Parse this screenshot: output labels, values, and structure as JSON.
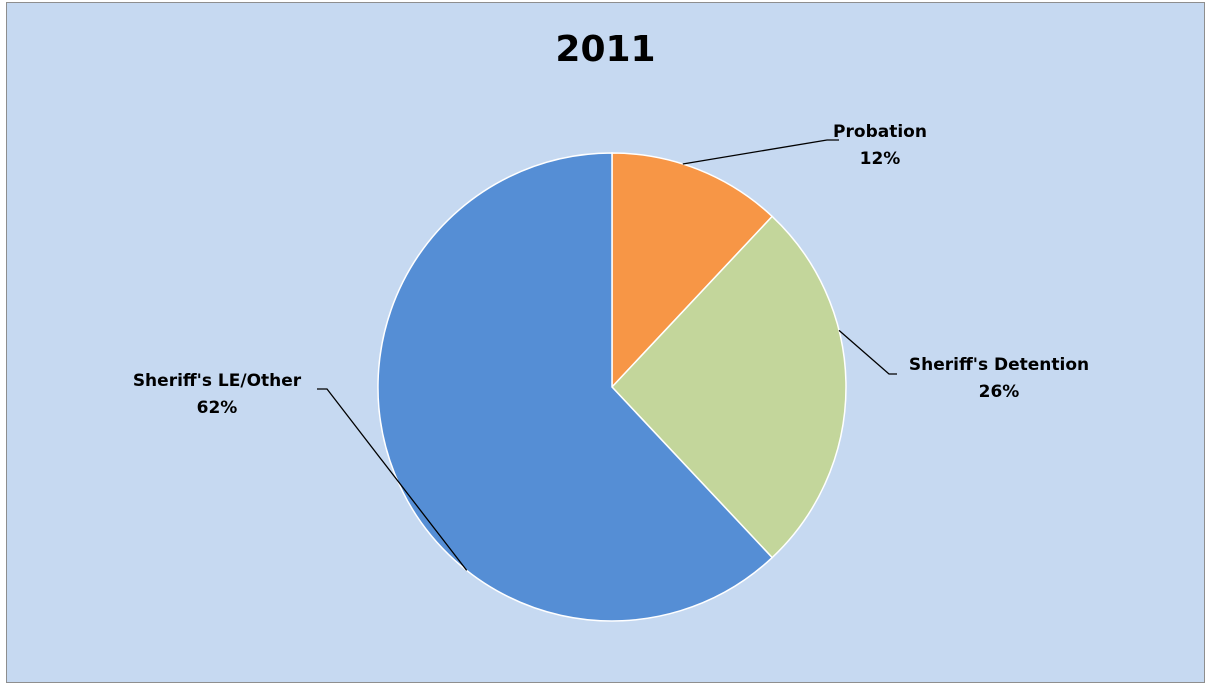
{
  "chart_data": {
    "type": "pie",
    "title": "2011",
    "categories": [
      "Probation",
      "Sheriff's Detention",
      "Sheriff's LE/Other"
    ],
    "values": [
      12,
      26,
      62
    ],
    "value_labels": [
      "12%",
      "26%",
      "62%"
    ],
    "colors": [
      "#f79646",
      "#c3d69b",
      "#558ed5"
    ],
    "start_angle": "12 o'clock",
    "direction": "clockwise",
    "legend": "none"
  }
}
